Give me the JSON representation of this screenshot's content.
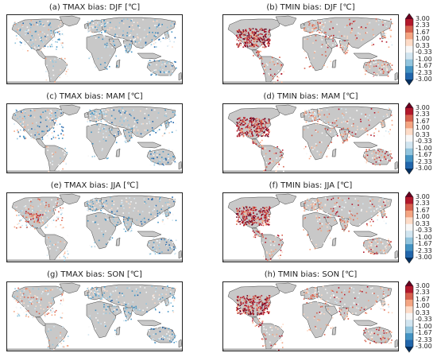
{
  "panels": [
    {
      "id": "a",
      "title": "(a) TMAX bias: DJF [℃]",
      "variable": "TMAX",
      "season": "DJF"
    },
    {
      "id": "b",
      "title": "(b) TMIN bias: DJF [℃]",
      "variable": "TMIN",
      "season": "DJF"
    },
    {
      "id": "c",
      "title": "(c) TMAX bias: MAM [℃]",
      "variable": "TMAX",
      "season": "MAM"
    },
    {
      "id": "d",
      "title": "(d) TMIN bias: MAM [℃]",
      "variable": "TMIN",
      "season": "MAM"
    },
    {
      "id": "e",
      "title": "(e) TMAX bias: JJA [℃]",
      "variable": "TMAX",
      "season": "JJA"
    },
    {
      "id": "f",
      "title": "(f) TMIN bias: JJA [℃]",
      "variable": "TMIN",
      "season": "JJA"
    },
    {
      "id": "g",
      "title": "(g) TMAX bias: SON [℃]",
      "variable": "TMAX",
      "season": "SON"
    },
    {
      "id": "h",
      "title": "(h) TMIN bias: SON [℃]",
      "variable": "TMIN",
      "season": "SON"
    }
  ],
  "colorbar": {
    "ticks": [
      "3.00",
      "2.33",
      "1.67",
      "1.00",
      "0.33",
      "-0.33",
      "-1.00",
      "-1.67",
      "-2.33",
      "-3.00"
    ],
    "colors": [
      "#67001f",
      "#b2182b",
      "#d6604d",
      "#f4a582",
      "#fddbc7",
      "#f7f7f7",
      "#d1e5f0",
      "#92c5de",
      "#4393c3",
      "#2166ac",
      "#053061"
    ],
    "extend": "both"
  },
  "style": {
    "land": "#c8c8c8",
    "ocean": "#ffffff",
    "border": "#444444"
  }
}
